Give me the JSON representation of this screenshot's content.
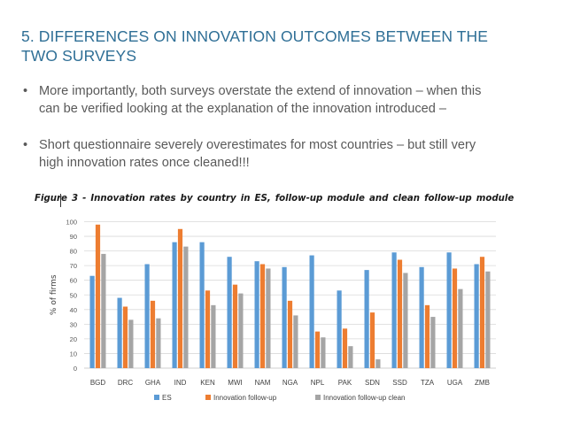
{
  "slide": {
    "title_lines": [
      "5. DIFFERENCES ON INNOVATION OUTCOMES BETWEEN THE",
      "TWO SURVEYS"
    ],
    "bullets": [
      {
        "lines": [
          "More importantly, both surveys overstate the extend of innovation – when this",
          "can be verified looking at the explanation of the innovation introduced –"
        ]
      },
      {
        "lines": [
          "Short questionnaire severely overestimates for most countries – but still very",
          "high innovation rates once cleaned!!!"
        ]
      }
    ],
    "bullet_glyph": "•"
  },
  "chart_data": {
    "type": "bar",
    "title": "Figure  3  -  Innovation  rates  by  country  in  ES,  follow-up  module  and  clean  follow-up  module",
    "ylabel": "% of firms",
    "xlabel": "",
    "ylim": [
      0,
      100
    ],
    "yticks": [
      0,
      10,
      20,
      30,
      40,
      50,
      60,
      70,
      80,
      90,
      100
    ],
    "grid": true,
    "legend_position": "bottom",
    "categories": [
      "BGD",
      "DRC",
      "GHA",
      "IND",
      "KEN",
      "MWI",
      "NAM",
      "NGA",
      "NPL",
      "PAK",
      "SDN",
      "SSD",
      "TZA",
      "UGA",
      "ZMB"
    ],
    "series": [
      {
        "name": "ES",
        "color": "#5b9bd5",
        "values": [
          63,
          48,
          71,
          86,
          86,
          76,
          73,
          69,
          77,
          53,
          67,
          79,
          69,
          79,
          71
        ]
      },
      {
        "name": "Innovation follow-up",
        "color": "#ed7d31",
        "values": [
          98,
          42,
          46,
          95,
          53,
          57,
          71,
          46,
          25,
          27,
          38,
          74,
          43,
          68,
          76
        ]
      },
      {
        "name": "Innovation follow-up clean",
        "color": "#a5a5a5",
        "values": [
          78,
          33,
          34,
          83,
          43,
          51,
          68,
          36,
          21,
          15,
          6,
          65,
          35,
          54,
          66
        ]
      }
    ]
  }
}
